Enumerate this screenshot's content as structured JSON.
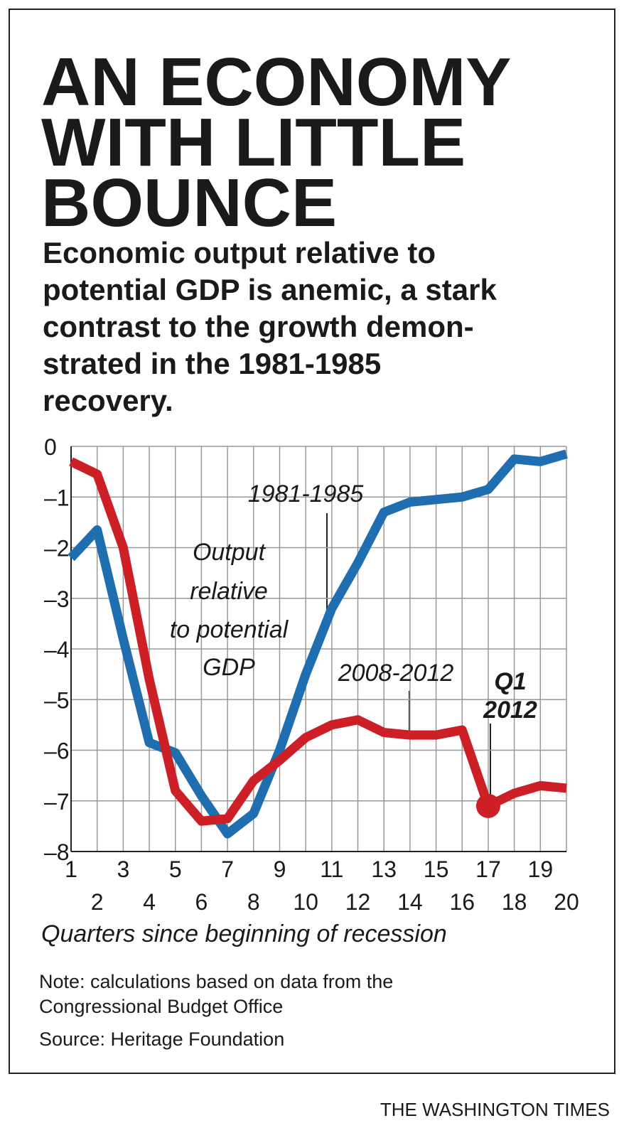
{
  "chart_data": {
    "type": "line",
    "title": [
      "AN ECONOMY",
      "WITH LITTLE",
      "BOUNCE"
    ],
    "subtitle": [
      "Economic output relative to",
      "potential GDP is anemic, a stark",
      "contrast to the growth demon-",
      "strated in the 1981-1985",
      "recovery."
    ],
    "x": [
      1,
      2,
      3,
      4,
      5,
      6,
      7,
      8,
      9,
      10,
      11,
      12,
      13,
      14,
      15,
      16,
      17,
      18,
      19,
      20
    ],
    "series": [
      {
        "name": "1981-1985",
        "color": "#1f6fb0",
        "values": [
          -2.2,
          -1.65,
          -3.8,
          -5.85,
          -6.05,
          -6.9,
          -7.65,
          -7.25,
          -6.0,
          -4.5,
          -3.2,
          -2.3,
          -1.3,
          -1.1,
          -1.05,
          -1.0,
          -0.85,
          -0.25,
          -0.3,
          -0.15
        ]
      },
      {
        "name": "2008-2012",
        "color": "#cc1f26",
        "values": [
          -0.3,
          -0.55,
          -2.0,
          -4.6,
          -6.8,
          -7.4,
          -7.35,
          -6.6,
          -6.2,
          -5.75,
          -5.5,
          -5.4,
          -5.65,
          -5.7,
          -5.7,
          -5.6,
          -7.1,
          -6.85,
          -6.7,
          -6.75
        ]
      }
    ],
    "annotations": [
      [
        "Output",
        "relative",
        "to potential",
        "GDP"
      ],
      [
        "Q1",
        "2012"
      ]
    ],
    "xlabel": "Quarters since beginning of recession",
    "xlim": [
      1,
      20
    ],
    "xticks": [
      1,
      2,
      3,
      4,
      5,
      6,
      7,
      8,
      9,
      10,
      11,
      12,
      13,
      14,
      15,
      16,
      17,
      18,
      19,
      20
    ],
    "ylim": [
      -8,
      0
    ],
    "yticks": [
      0,
      {
        "value": -1,
        "label": "–1"
      },
      {
        "value": -2,
        "label": "–2"
      },
      {
        "value": -3,
        "label": "–3"
      },
      {
        "value": -4,
        "label": "–4"
      },
      {
        "value": -5,
        "label": "–5"
      },
      {
        "value": -6,
        "label": "–6"
      },
      {
        "value": -7,
        "label": "–7"
      },
      {
        "value": -8,
        "label": "–8"
      }
    ],
    "grid": true,
    "note": [
      "Note: calculations based on data from the",
      "Congressional Budget Office"
    ],
    "source": "Source: Heritage Foundation",
    "credit": "THE WASHINGTON TIMES"
  }
}
